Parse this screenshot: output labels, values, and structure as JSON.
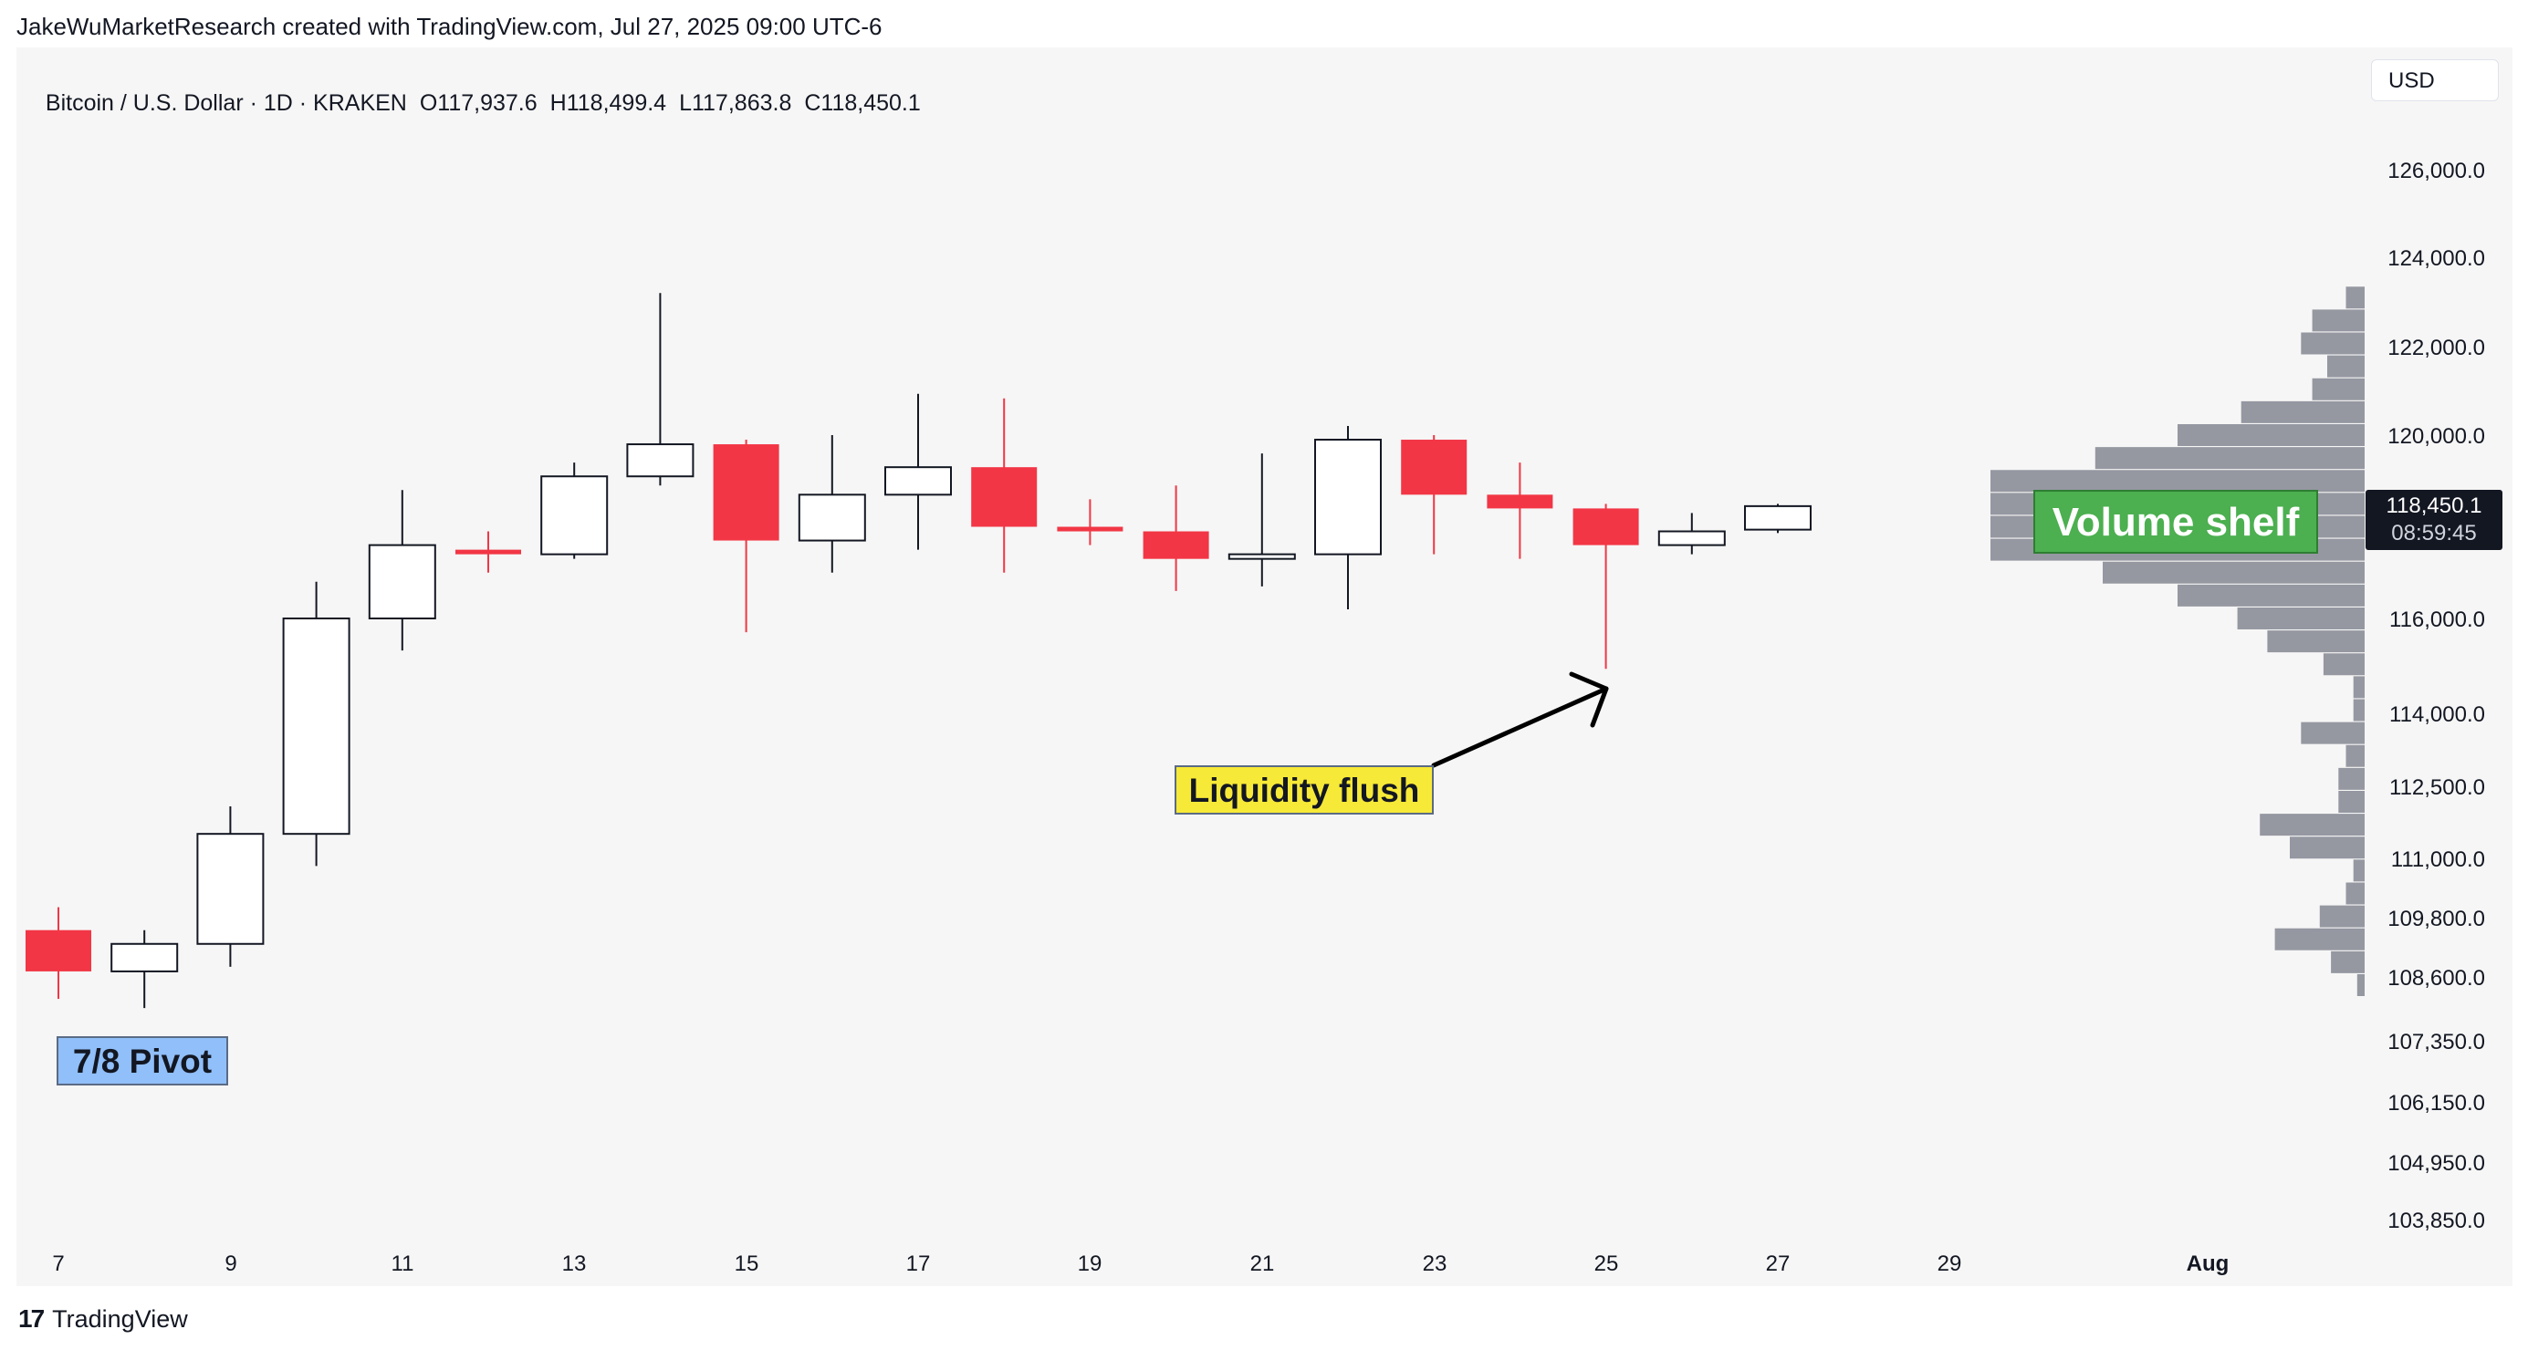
{
  "header": {
    "credit": "JakeWuMarketResearch created with TradingView.com, Jul 27, 2025 09:00 UTC-6"
  },
  "symbol": {
    "name": "Bitcoin / U.S. Dollar · 1D · KRAKEN",
    "open": "O117,937.6",
    "high": "H118,499.4",
    "low": "L117,863.8",
    "close": "C118,450.1"
  },
  "currency": "USD",
  "price_tag": {
    "price": "118,450.1",
    "countdown": "08:59:45"
  },
  "annotations": {
    "pivot": "7/8 Pivot",
    "flush": "Liquidity flush",
    "shelf": "Volume shelf"
  },
  "footer": {
    "brand": "TradingView",
    "mark": "17"
  },
  "colors": {
    "up_fill": "#ffffff",
    "up_border": "#131722",
    "down": "#f23645",
    "volume_profile": "#9598a1",
    "pivot_bg": "#90bff9",
    "flush_bg": "#f7e937",
    "shelf_bg": "#4caf50",
    "background": "#f6f6f6"
  },
  "chart_data": {
    "type": "candlestick",
    "x_ticks": [
      "7",
      "9",
      "11",
      "13",
      "15",
      "17",
      "19",
      "21",
      "23",
      "25",
      "27",
      "29",
      "Aug"
    ],
    "y_ticks": [
      "126,000.0",
      "124,000.0",
      "122,000.0",
      "120,000.0",
      "116,000.0",
      "114,000.0",
      "112,500.0",
      "111,000.0",
      "109,800.0",
      "108,600.0",
      "107,350.0",
      "106,150.0",
      "104,950.0",
      "103,850.0"
    ],
    "candles": [
      {
        "date": "Jul 7",
        "open": 109200,
        "high": 109700,
        "low": 107700,
        "close": 108300
      },
      {
        "date": "Jul 8",
        "open": 108300,
        "high": 109200,
        "low": 107500,
        "close": 108900
      },
      {
        "date": "Jul 9",
        "open": 108900,
        "high": 111900,
        "low": 108400,
        "close": 111300
      },
      {
        "date": "Jul 10",
        "open": 111300,
        "high": 116800,
        "low": 110600,
        "close": 116000
      },
      {
        "date": "Jul 11",
        "open": 116000,
        "high": 118800,
        "low": 115300,
        "close": 117600
      },
      {
        "date": "Jul 12",
        "open": 117500,
        "high": 117900,
        "low": 117000,
        "close": 117400
      },
      {
        "date": "Jul 13",
        "open": 117400,
        "high": 119400,
        "low": 117300,
        "close": 119100
      },
      {
        "date": "Jul 14",
        "open": 119100,
        "high": 123100,
        "low": 118900,
        "close": 119800
      },
      {
        "date": "Jul 15",
        "open": 119800,
        "high": 119900,
        "low": 115700,
        "close": 117700
      },
      {
        "date": "Jul 16",
        "open": 117700,
        "high": 120000,
        "low": 117000,
        "close": 118700
      },
      {
        "date": "Jul 17",
        "open": 118700,
        "high": 120900,
        "low": 117500,
        "close": 119300
      },
      {
        "date": "Jul 18",
        "open": 119300,
        "high": 120800,
        "low": 117000,
        "close": 118000
      },
      {
        "date": "Jul 19",
        "open": 118000,
        "high": 118600,
        "low": 117600,
        "close": 117900
      },
      {
        "date": "Jul 20",
        "open": 117900,
        "high": 118900,
        "low": 116600,
        "close": 117300
      },
      {
        "date": "Jul 21",
        "open": 117300,
        "high": 119600,
        "low": 116700,
        "close": 117400
      },
      {
        "date": "Jul 22",
        "open": 117400,
        "high": 120200,
        "low": 116200,
        "close": 119900
      },
      {
        "date": "Jul 23",
        "open": 119900,
        "high": 120000,
        "low": 117400,
        "close": 118700
      },
      {
        "date": "Jul 24",
        "open": 118700,
        "high": 119400,
        "low": 117300,
        "close": 118400
      },
      {
        "date": "Jul 25",
        "open": 118400,
        "high": 118500,
        "low": 114900,
        "close": 117600
      },
      {
        "date": "Jul 26",
        "open": 117600,
        "high": 118300,
        "low": 117400,
        "close": 117900
      },
      {
        "date": "Jul 27",
        "open": 117937.6,
        "high": 118499.4,
        "low": 117863.8,
        "close": 118450.1
      }
    ],
    "volume_profile": [
      {
        "price": 123000,
        "rel": 0.05
      },
      {
        "price": 122500,
        "rel": 0.14
      },
      {
        "price": 122000,
        "rel": 0.17
      },
      {
        "price": 121500,
        "rel": 0.1
      },
      {
        "price": 121000,
        "rel": 0.14
      },
      {
        "price": 120500,
        "rel": 0.33
      },
      {
        "price": 120000,
        "rel": 0.5
      },
      {
        "price": 119500,
        "rel": 0.72
      },
      {
        "price": 119000,
        "rel": 1.0
      },
      {
        "price": 118500,
        "rel": 1.0
      },
      {
        "price": 118000,
        "rel": 1.0
      },
      {
        "price": 117500,
        "rel": 1.0
      },
      {
        "price": 117000,
        "rel": 0.7
      },
      {
        "price": 116500,
        "rel": 0.5
      },
      {
        "price": 116000,
        "rel": 0.34
      },
      {
        "price": 115500,
        "rel": 0.26
      },
      {
        "price": 115000,
        "rel": 0.11
      },
      {
        "price": 114500,
        "rel": 0.03
      },
      {
        "price": 114000,
        "rel": 0.03
      },
      {
        "price": 113500,
        "rel": 0.17
      },
      {
        "price": 113000,
        "rel": 0.05
      },
      {
        "price": 112500,
        "rel": 0.07
      },
      {
        "price": 112000,
        "rel": 0.07
      },
      {
        "price": 111500,
        "rel": 0.28
      },
      {
        "price": 111000,
        "rel": 0.2
      },
      {
        "price": 110500,
        "rel": 0.03
      },
      {
        "price": 110000,
        "rel": 0.05
      },
      {
        "price": 109500,
        "rel": 0.12
      },
      {
        "price": 109000,
        "rel": 0.24
      },
      {
        "price": 108500,
        "rel": 0.09
      },
      {
        "price": 108000,
        "rel": 0.02
      }
    ]
  }
}
